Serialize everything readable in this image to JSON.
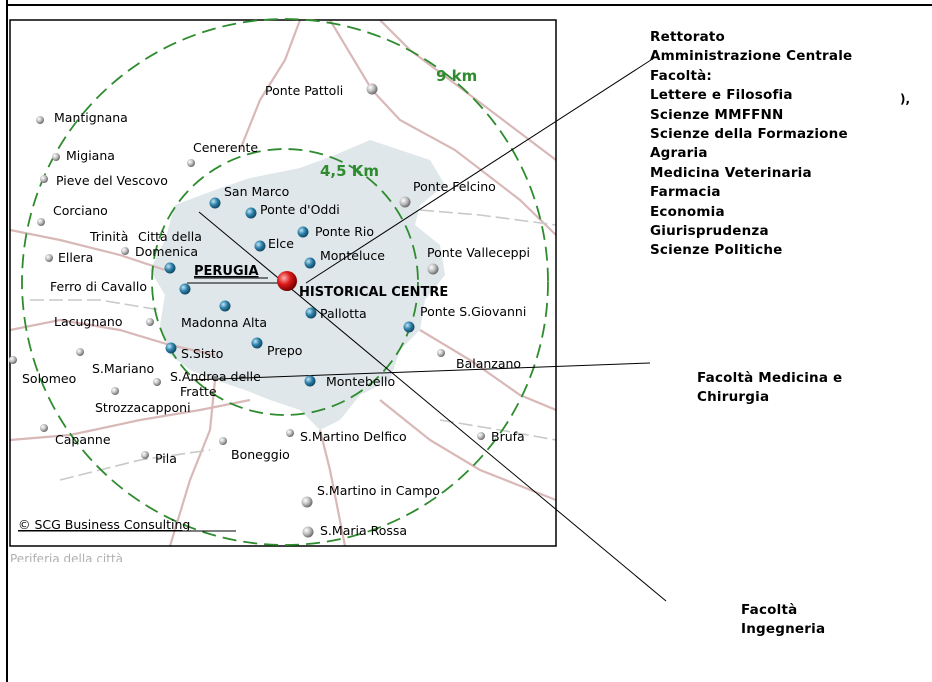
{
  "map": {
    "distance_labels": {
      "outer": "9 km",
      "inner": "4,5 Km"
    },
    "city": "PERUGIA",
    "center": "HISTORICAL CENTRE",
    "copyright": "© SCG Business Consulting",
    "cropped_caption": "Periferia della città",
    "places": {
      "ponte_pattoli": "Ponte Pattoli",
      "mantignana": "Mantignana",
      "migiana": "Migiana",
      "cenerente": "Cenerente",
      "pieve_del_vescovo": "Pieve del Vescovo",
      "corciano": "Corciano",
      "trinita": "Trinità",
      "ellera": "Ellera",
      "citta_della_domenica_1": "Città della",
      "citta_della_domenica_2": "Domenica",
      "ferro_di_cavallo": "Ferro di Cavallo",
      "lacugnano": "Lacugnano",
      "solomeo": "Solomeo",
      "s_mariano": "S.Mariano",
      "s_sisto": "S.Sisto",
      "s_andrea_1": "S.Andrea delle",
      "s_andrea_2": "Fratte",
      "strozzacapponi": "Strozzacapponi",
      "capanne": "Capanne",
      "pila": "Pila",
      "boneggio": "Boneggio",
      "san_marco": "San Marco",
      "ponte_d_oddi": "Ponte d'Oddi",
      "elce": "Elce",
      "ponte_rio": "Ponte Rio",
      "monteluce": "Monteluce",
      "madonna_alta": "Madonna Alta",
      "pallotta": "Pallotta",
      "prepo": "Prepo",
      "montebello": "Montebello",
      "ponte_felcino": "Ponte Felcino",
      "ponte_valleceppi": "Ponte Valleceppi",
      "ponte_s_giovanni": "Ponte S.Giovanni",
      "balanzano": "Balanzano",
      "s_martino_delfico": "S.Martino Delfico",
      "brufa": "Brufa",
      "s_martino_in_campo": "S.Martino in Campo",
      "s_maria_rossa": "S.Maria Rossa"
    }
  },
  "annotations": {
    "group_1": [
      "Rettorato",
      "Amministrazione Centrale",
      "Facoltà:",
      "Lettere e Filosofia",
      "Scienze MMFFNN",
      "Scienze della Formazione",
      "Agraria",
      "Medicina Veterinaria",
      "Farmacia",
      "Economia",
      "Giurisprudenza",
      "Scienze Politiche"
    ],
    "group_2": [
      "Facoltà Medicina e",
      "Chirurgia"
    ],
    "group_3": [
      "Facoltà",
      "Ingegneria"
    ],
    "stray_mark": "),"
  },
  "colors": {
    "ring": "#2e8b2e",
    "urban_area": "#dfe7ea",
    "road": "#d9b8b8",
    "center_marker": "#dd1a1a",
    "campus_dot": "#2c7fa8",
    "village_dot": "#bfbfbf"
  }
}
